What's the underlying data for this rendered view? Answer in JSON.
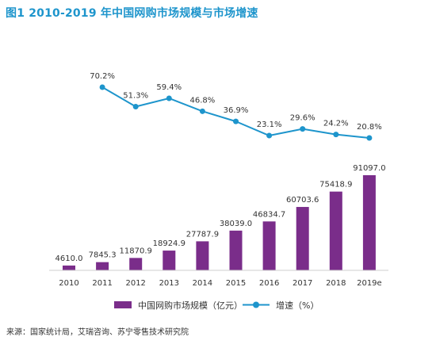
{
  "title": "图1 2010-2019 年中国网购市场规模与市场增速",
  "source": "来源：国家统计局，艾瑞咨询、苏宁零售技术研究院",
  "colors": {
    "bar": "#7a2d8a",
    "line": "#1e95cc",
    "title": "#1e95cc",
    "text": "#333333"
  },
  "chart_data": {
    "type": "bar",
    "categories": [
      "2010",
      "2011",
      "2012",
      "2013",
      "2014",
      "2015",
      "2016",
      "2017",
      "2018",
      "2019e"
    ],
    "series": [
      {
        "name": "中国网购市场规模（亿元）",
        "type": "bar",
        "values": [
          4610.0,
          7845.3,
          11870.9,
          18924.9,
          27787.9,
          38039.0,
          46834.7,
          60703.6,
          75418.9,
          91097.0
        ],
        "labels": [
          "4610.0",
          "7845.3",
          "11870.9",
          "18924.9",
          "27787.9",
          "38039.0",
          "46834.7",
          "60703.6",
          "75418.9",
          "91097.0"
        ]
      },
      {
        "name": "增速（%）",
        "type": "line",
        "values": [
          null,
          70.2,
          51.3,
          59.4,
          46.8,
          36.9,
          23.1,
          29.6,
          24.2,
          20.8
        ],
        "labels": [
          null,
          "70.2%",
          "51.3%",
          "59.4%",
          "46.8%",
          "36.9%",
          "23.1%",
          "29.6%",
          "24.2%",
          "20.8%"
        ]
      }
    ],
    "legend_position": "bottom",
    "grid": false
  }
}
